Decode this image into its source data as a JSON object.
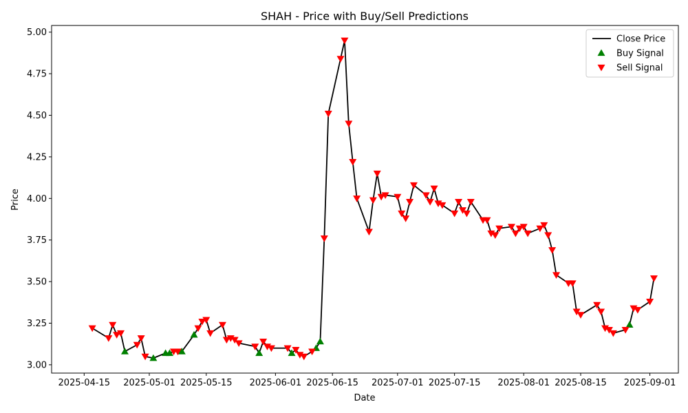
{
  "chart_data": {
    "type": "line",
    "title": "SHAH - Price with Buy/Sell Predictions",
    "xlabel": "Date",
    "ylabel": "Price",
    "xlim": [
      "2025-04-07",
      "2025-09-08"
    ],
    "ylim": [
      2.95,
      5.04
    ],
    "grid": false,
    "legend_position": "top-right",
    "x_ticks": [
      "2025-04-15",
      "2025-05-01",
      "2025-05-15",
      "2025-06-01",
      "2025-06-15",
      "2025-07-01",
      "2025-07-15",
      "2025-08-01",
      "2025-08-15",
      "2025-09-01"
    ],
    "y_ticks": [
      "3.00",
      "3.25",
      "3.50",
      "3.75",
      "4.00",
      "4.25",
      "4.50",
      "4.75",
      "5.00"
    ],
    "colors": {
      "close": "#000000",
      "buy": "#008000",
      "sell": "#ff0000"
    },
    "series": [
      {
        "name": "Close Price",
        "kind": "line",
        "points": [
          [
            "2025-04-17",
            3.22
          ],
          [
            "2025-04-21",
            3.16
          ],
          [
            "2025-04-22",
            3.24
          ],
          [
            "2025-04-23",
            3.18
          ],
          [
            "2025-04-24",
            3.19
          ],
          [
            "2025-04-25",
            3.08
          ],
          [
            "2025-04-28",
            3.12
          ],
          [
            "2025-04-29",
            3.16
          ],
          [
            "2025-04-30",
            3.05
          ],
          [
            "2025-05-02",
            3.04
          ],
          [
            "2025-05-05",
            3.07
          ],
          [
            "2025-05-06",
            3.07
          ],
          [
            "2025-05-07",
            3.08
          ],
          [
            "2025-05-08",
            3.08
          ],
          [
            "2025-05-09",
            3.08
          ],
          [
            "2025-05-12",
            3.18
          ],
          [
            "2025-05-13",
            3.22
          ],
          [
            "2025-05-14",
            3.26
          ],
          [
            "2025-05-15",
            3.27
          ],
          [
            "2025-05-16",
            3.19
          ],
          [
            "2025-05-19",
            3.24
          ],
          [
            "2025-05-20",
            3.15
          ],
          [
            "2025-05-21",
            3.16
          ],
          [
            "2025-05-22",
            3.15
          ],
          [
            "2025-05-23",
            3.13
          ],
          [
            "2025-05-27",
            3.11
          ],
          [
            "2025-05-28",
            3.07
          ],
          [
            "2025-05-29",
            3.14
          ],
          [
            "2025-05-30",
            3.11
          ],
          [
            "2025-05-31",
            3.1
          ],
          [
            "2025-06-02",
            3.1
          ],
          [
            "2025-06-04",
            3.1
          ],
          [
            "2025-06-05",
            3.07
          ],
          [
            "2025-06-06",
            3.09
          ],
          [
            "2025-06-07",
            3.06
          ],
          [
            "2025-06-08",
            3.05
          ],
          [
            "2025-06-10",
            3.08
          ],
          [
            "2025-06-11",
            3.1
          ],
          [
            "2025-06-12",
            3.14
          ],
          [
            "2025-06-13",
            3.76
          ],
          [
            "2025-06-14",
            4.51
          ],
          [
            "2025-06-17",
            4.84
          ],
          [
            "2025-06-18",
            4.95
          ],
          [
            "2025-06-19",
            4.45
          ],
          [
            "2025-06-20",
            4.22
          ],
          [
            "2025-06-21",
            4.0
          ],
          [
            "2025-06-24",
            3.8
          ],
          [
            "2025-06-25",
            3.99
          ],
          [
            "2025-06-26",
            4.15
          ],
          [
            "2025-06-27",
            4.01
          ],
          [
            "2025-06-28",
            4.02
          ],
          [
            "2025-07-01",
            4.01
          ],
          [
            "2025-07-02",
            3.91
          ],
          [
            "2025-07-03",
            3.88
          ],
          [
            "2025-07-04",
            3.98
          ],
          [
            "2025-07-05",
            4.08
          ],
          [
            "2025-07-08",
            4.02
          ],
          [
            "2025-07-09",
            3.98
          ],
          [
            "2025-07-10",
            4.06
          ],
          [
            "2025-07-11",
            3.97
          ],
          [
            "2025-07-12",
            3.96
          ],
          [
            "2025-07-15",
            3.91
          ],
          [
            "2025-07-16",
            3.98
          ],
          [
            "2025-07-17",
            3.93
          ],
          [
            "2025-07-18",
            3.91
          ],
          [
            "2025-07-19",
            3.98
          ],
          [
            "2025-07-22",
            3.87
          ],
          [
            "2025-07-23",
            3.87
          ],
          [
            "2025-07-24",
            3.79
          ],
          [
            "2025-07-25",
            3.78
          ],
          [
            "2025-07-26",
            3.82
          ],
          [
            "2025-07-29",
            3.83
          ],
          [
            "2025-07-30",
            3.79
          ],
          [
            "2025-07-31",
            3.82
          ],
          [
            "2025-08-01",
            3.83
          ],
          [
            "2025-08-02",
            3.79
          ],
          [
            "2025-08-05",
            3.82
          ],
          [
            "2025-08-06",
            3.84
          ],
          [
            "2025-08-07",
            3.78
          ],
          [
            "2025-08-08",
            3.69
          ],
          [
            "2025-08-09",
            3.54
          ],
          [
            "2025-08-12",
            3.49
          ],
          [
            "2025-08-13",
            3.49
          ],
          [
            "2025-08-14",
            3.32
          ],
          [
            "2025-08-15",
            3.3
          ],
          [
            "2025-08-19",
            3.36
          ],
          [
            "2025-08-20",
            3.32
          ],
          [
            "2025-08-21",
            3.22
          ],
          [
            "2025-08-22",
            3.21
          ],
          [
            "2025-08-23",
            3.19
          ],
          [
            "2025-08-26",
            3.21
          ],
          [
            "2025-08-27",
            3.24
          ],
          [
            "2025-08-28",
            3.34
          ],
          [
            "2025-08-29",
            3.33
          ],
          [
            "2025-09-01",
            3.38
          ],
          [
            "2025-09-02",
            3.52
          ]
        ]
      },
      {
        "name": "Buy Signal",
        "kind": "marker-up",
        "points": [
          [
            "2025-04-25",
            3.08
          ],
          [
            "2025-05-02",
            3.04
          ],
          [
            "2025-05-05",
            3.07
          ],
          [
            "2025-05-06",
            3.07
          ],
          [
            "2025-05-09",
            3.08
          ],
          [
            "2025-05-12",
            3.18
          ],
          [
            "2025-05-28",
            3.07
          ],
          [
            "2025-06-05",
            3.07
          ],
          [
            "2025-06-11",
            3.1
          ],
          [
            "2025-06-12",
            3.14
          ],
          [
            "2025-08-27",
            3.24
          ]
        ]
      },
      {
        "name": "Sell Signal",
        "kind": "marker-down",
        "points": [
          [
            "2025-04-17",
            3.22
          ],
          [
            "2025-04-21",
            3.16
          ],
          [
            "2025-04-22",
            3.24
          ],
          [
            "2025-04-23",
            3.18
          ],
          [
            "2025-04-24",
            3.19
          ],
          [
            "2025-04-28",
            3.12
          ],
          [
            "2025-04-29",
            3.16
          ],
          [
            "2025-04-30",
            3.05
          ],
          [
            "2025-05-07",
            3.08
          ],
          [
            "2025-05-08",
            3.08
          ],
          [
            "2025-05-13",
            3.22
          ],
          [
            "2025-05-14",
            3.26
          ],
          [
            "2025-05-15",
            3.27
          ],
          [
            "2025-05-16",
            3.19
          ],
          [
            "2025-05-19",
            3.24
          ],
          [
            "2025-05-20",
            3.15
          ],
          [
            "2025-05-21",
            3.16
          ],
          [
            "2025-05-22",
            3.15
          ],
          [
            "2025-05-23",
            3.13
          ],
          [
            "2025-05-27",
            3.11
          ],
          [
            "2025-05-29",
            3.14
          ],
          [
            "2025-05-30",
            3.11
          ],
          [
            "2025-05-31",
            3.1
          ],
          [
            "2025-06-04",
            3.1
          ],
          [
            "2025-06-06",
            3.09
          ],
          [
            "2025-06-07",
            3.06
          ],
          [
            "2025-06-08",
            3.05
          ],
          [
            "2025-06-10",
            3.08
          ],
          [
            "2025-06-13",
            3.76
          ],
          [
            "2025-06-14",
            4.51
          ],
          [
            "2025-06-17",
            4.84
          ],
          [
            "2025-06-18",
            4.95
          ],
          [
            "2025-06-19",
            4.45
          ],
          [
            "2025-06-20",
            4.22
          ],
          [
            "2025-06-21",
            4.0
          ],
          [
            "2025-06-24",
            3.8
          ],
          [
            "2025-06-25",
            3.99
          ],
          [
            "2025-06-26",
            4.15
          ],
          [
            "2025-06-27",
            4.01
          ],
          [
            "2025-06-28",
            4.02
          ],
          [
            "2025-07-01",
            4.01
          ],
          [
            "2025-07-02",
            3.91
          ],
          [
            "2025-07-03",
            3.88
          ],
          [
            "2025-07-04",
            3.98
          ],
          [
            "2025-07-05",
            4.08
          ],
          [
            "2025-07-08",
            4.02
          ],
          [
            "2025-07-09",
            3.98
          ],
          [
            "2025-07-10",
            4.06
          ],
          [
            "2025-07-11",
            3.97
          ],
          [
            "2025-07-12",
            3.96
          ],
          [
            "2025-07-15",
            3.91
          ],
          [
            "2025-07-16",
            3.98
          ],
          [
            "2025-07-17",
            3.93
          ],
          [
            "2025-07-18",
            3.91
          ],
          [
            "2025-07-19",
            3.98
          ],
          [
            "2025-07-22",
            3.87
          ],
          [
            "2025-07-23",
            3.87
          ],
          [
            "2025-07-24",
            3.79
          ],
          [
            "2025-07-25",
            3.78
          ],
          [
            "2025-07-26",
            3.82
          ],
          [
            "2025-07-29",
            3.83
          ],
          [
            "2025-07-30",
            3.79
          ],
          [
            "2025-07-31",
            3.82
          ],
          [
            "2025-08-01",
            3.83
          ],
          [
            "2025-08-02",
            3.79
          ],
          [
            "2025-08-05",
            3.82
          ],
          [
            "2025-08-06",
            3.84
          ],
          [
            "2025-08-07",
            3.78
          ],
          [
            "2025-08-08",
            3.69
          ],
          [
            "2025-08-09",
            3.54
          ],
          [
            "2025-08-12",
            3.49
          ],
          [
            "2025-08-13",
            3.49
          ],
          [
            "2025-08-14",
            3.32
          ],
          [
            "2025-08-15",
            3.3
          ],
          [
            "2025-08-19",
            3.36
          ],
          [
            "2025-08-20",
            3.32
          ],
          [
            "2025-08-21",
            3.22
          ],
          [
            "2025-08-22",
            3.21
          ],
          [
            "2025-08-23",
            3.19
          ],
          [
            "2025-08-26",
            3.21
          ],
          [
            "2025-08-28",
            3.34
          ],
          [
            "2025-08-29",
            3.33
          ],
          [
            "2025-09-01",
            3.38
          ],
          [
            "2025-09-02",
            3.52
          ]
        ]
      }
    ]
  }
}
